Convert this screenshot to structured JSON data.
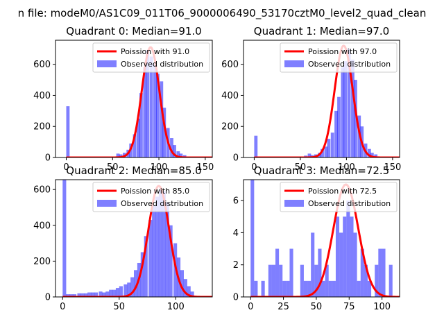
{
  "figure": {
    "suptitle": "n file: modeM0/AS1C09_011T06_9000006490_53170cztM0_level2_quad_clean"
  },
  "colors": {
    "hist": "#0000ff",
    "fit": "#ff0000",
    "axes": "#000000",
    "background": "#ffffff"
  },
  "chart_data": [
    {
      "type": "bar",
      "title": "Quadrant 0: Median=91.0",
      "xlim": [
        -11.6,
        157.6
      ],
      "ylim": [
        0,
        755
      ],
      "xticks": [
        0,
        50,
        100,
        150
      ],
      "yticks": [
        0,
        200,
        400,
        600
      ],
      "bin_width": 3.6,
      "series": [
        {
          "name": "Poission with 91.0",
          "kind": "line",
          "mu": 91.0,
          "peak": 710,
          "sigma": 9.5
        },
        {
          "name": "Observed distribution",
          "kind": "hist",
          "x": [
            0,
            50,
            54,
            57,
            61,
            65,
            68,
            72,
            76,
            79,
            83,
            86,
            90,
            94,
            97,
            101,
            104,
            108,
            112,
            115,
            119,
            122,
            126
          ],
          "values": [
            330,
            5,
            25,
            20,
            30,
            50,
            90,
            150,
            250,
            415,
            580,
            690,
            650,
            600,
            540,
            490,
            320,
            190,
            125,
            80,
            40,
            25,
            15
          ]
        }
      ],
      "legend": "upper right"
    },
    {
      "type": "bar",
      "title": "Quadrant 1: Median=97.0",
      "xlim": [
        -11.6,
        157.6
      ],
      "ylim": [
        0,
        755
      ],
      "xticks": [
        0,
        50,
        100,
        150
      ],
      "yticks": [
        0,
        200,
        400,
        600
      ],
      "bin_width": 3.6,
      "series": [
        {
          "name": "Poission with 97.0",
          "kind": "line",
          "mu": 97.0,
          "peak": 720,
          "sigma": 9.8
        },
        {
          "name": "Observed distribution",
          "kind": "hist",
          "x": [
            0,
            54,
            58,
            61,
            65,
            69,
            72,
            76,
            79,
            83,
            87,
            90,
            94,
            97,
            101,
            105,
            108,
            112,
            115,
            119,
            123,
            126,
            130
          ],
          "values": [
            140,
            12,
            25,
            15,
            20,
            30,
            55,
            70,
            120,
            160,
            300,
            390,
            580,
            620,
            700,
            630,
            500,
            270,
            200,
            90,
            55,
            30,
            20
          ]
        }
      ],
      "legend": "upper right"
    },
    {
      "type": "bar",
      "title": "Quadrant 2: Median=85.0",
      "xlim": [
        -6.3,
        132.3
      ],
      "ylim": [
        0,
        655
      ],
      "xticks": [
        0,
        50,
        100
      ],
      "yticks": [
        0,
        200,
        400,
        600
      ],
      "bin_width": 3.15,
      "series": [
        {
          "name": "Poission with 85.0",
          "kind": "line",
          "mu": 85.0,
          "peak": 620,
          "sigma": 9.2
        },
        {
          "name": "Observed distribution",
          "kind": "hist",
          "x": [
            0,
            3,
            6,
            9,
            13,
            16,
            19,
            22,
            25,
            28,
            32,
            35,
            38,
            41,
            44,
            47,
            50,
            54,
            57,
            60,
            63,
            66,
            69,
            72,
            76,
            79,
            82,
            85,
            88,
            91,
            94,
            98,
            101,
            104,
            107,
            110,
            113
          ],
          "values": [
            660,
            15,
            15,
            15,
            20,
            20,
            20,
            25,
            25,
            25,
            30,
            25,
            30,
            40,
            40,
            50,
            60,
            70,
            80,
            110,
            150,
            190,
            250,
            340,
            430,
            510,
            560,
            600,
            590,
            530,
            400,
            300,
            220,
            150,
            100,
            60,
            30
          ]
        }
      ],
      "legend": "upper right"
    },
    {
      "type": "bar",
      "title": "Quadrant 3: Median=72.5",
      "xlim": [
        -5.4,
        113.4
      ],
      "ylim": [
        0,
        7.3
      ],
      "xticks": [
        0,
        25,
        50,
        75,
        100
      ],
      "yticks": [
        0,
        2,
        4,
        6
      ],
      "bin_width": 2.7,
      "series": [
        {
          "name": "Poission with 72.5",
          "kind": "line",
          "mu": 72.5,
          "peak": 7.0,
          "sigma": 9.5
        },
        {
          "name": "Observed distribution",
          "kind": "hist",
          "x": [
            0,
            2.7,
            8.1,
            13.5,
            16.2,
            18.9,
            21.6,
            24.3,
            27.0,
            29.7,
            37.8,
            40.5,
            43.2,
            45.9,
            48.6,
            51.3,
            54.0,
            56.7,
            59.4,
            62.1,
            64.8,
            67.5,
            70.2,
            72.9,
            75.6,
            78.3,
            81.0,
            83.7,
            86.4,
            89.1,
            94.5,
            97.2,
            99.9,
            105.3
          ],
          "values": [
            7.3,
            1,
            1,
            2,
            2,
            3,
            2,
            1,
            1,
            3,
            2,
            1,
            1,
            4,
            2,
            3,
            1,
            2,
            1,
            1,
            5,
            4,
            5,
            6,
            5,
            4,
            1,
            3,
            2,
            1,
            2,
            3,
            3,
            2
          ]
        }
      ],
      "legend": "upper right"
    }
  ]
}
